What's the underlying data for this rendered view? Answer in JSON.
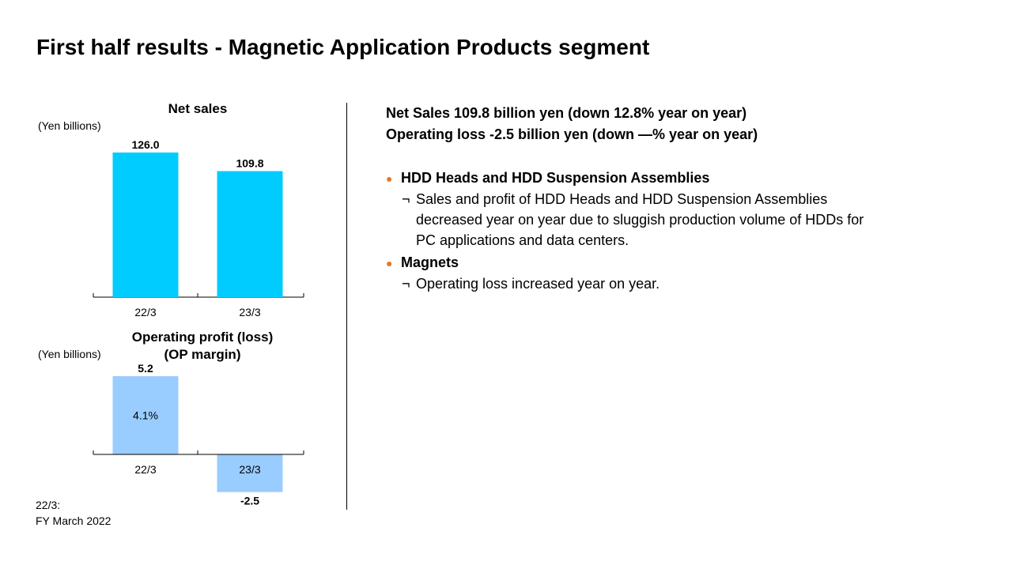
{
  "title": "First half results - Magnetic Application Products segment",
  "chart_data": [
    {
      "type": "bar",
      "title": "Net sales",
      "unit_label": "(Yen billions)",
      "categories": [
        "22/3",
        "23/3"
      ],
      "values": [
        126.0,
        109.8
      ],
      "value_labels": [
        "126.0",
        "109.8"
      ],
      "color": "#00CCFF",
      "ylim": [
        0,
        135
      ]
    },
    {
      "type": "bar",
      "title_lines": [
        "Operating profit (loss)",
        "(OP margin)"
      ],
      "unit_label": "(Yen billions)",
      "categories": [
        "22/3",
        "23/3"
      ],
      "values": [
        5.2,
        -2.5
      ],
      "value_labels": [
        "5.2",
        "-2.5"
      ],
      "margin_labels": [
        "4.1%",
        ""
      ],
      "color": "#99CCFF",
      "ylim": [
        -3,
        6
      ]
    }
  ],
  "summary": {
    "line1": "Net Sales  109.8 billion yen (down 12.8% year on year)",
    "line2": "Operating loss  -2.5 billion yen (down —% year on year)"
  },
  "bullets": [
    {
      "marker": "●",
      "heading": "HDD Heads and HDD Suspension Assemblies",
      "sub_marker": "¬",
      "lines": [
        "Sales and profit of HDD Heads and HDD Suspension Assemblies",
        "decreased year on year due to sluggish production volume of HDDs for",
        "PC applications and data centers."
      ]
    },
    {
      "marker": "●",
      "heading": "Magnets",
      "sub_marker": "¬",
      "lines": [
        "Operating loss increased year on year."
      ]
    }
  ],
  "footnote": {
    "line1": "22/3:",
    "line2": "FY March 2022"
  },
  "colors": {
    "net_sales_bar": "#00CCFF",
    "op_bar": "#99CCFF",
    "bullet": "#E87722"
  }
}
